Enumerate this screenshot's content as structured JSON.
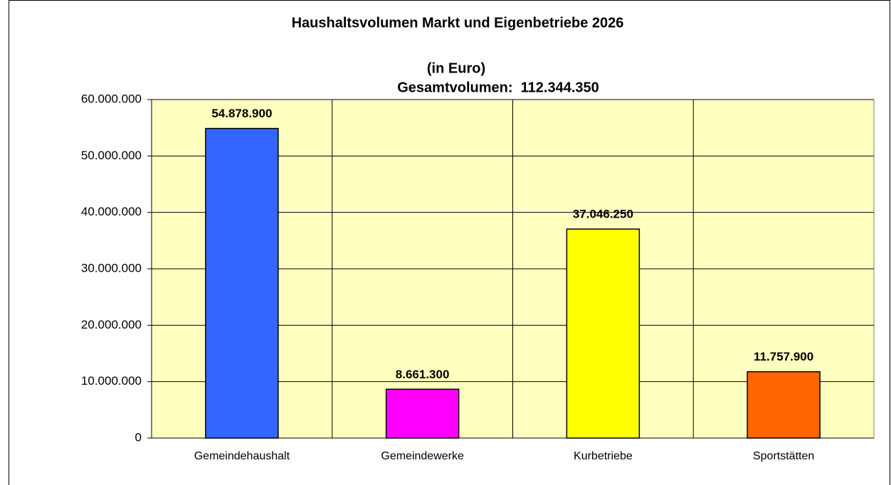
{
  "chart_data": {
    "type": "bar",
    "title": "Haushaltsvolumen Markt und Eigenbetriebe 2026",
    "subtitle": "(in Euro)",
    "annotation": "Gesamtvolumen:  112.344.350",
    "categories": [
      "Gemeindehaushalt",
      "Gemeindewerke",
      "Kurbetriebe",
      "Sportstätten"
    ],
    "values": [
      54878900,
      8661300,
      37046250,
      11757900
    ],
    "value_labels": [
      "54.878.900",
      "8.661.300",
      "37.046.250",
      "11.757.900"
    ],
    "colors": [
      "#3366ff",
      "#ff00ff",
      "#ffff00",
      "#ff6600"
    ],
    "ylim": [
      0,
      60000000
    ],
    "yticks": [
      0,
      {
        "value": 10000000,
        "label": "10.000.000"
      },
      {
        "value": 20000000,
        "label": "20.000.000"
      },
      {
        "value": 30000000,
        "label": "30.000.000"
      },
      {
        "value": 40000000,
        "label": "40.000.000"
      },
      {
        "value": 50000000,
        "label": "50.000.000"
      },
      {
        "value": 60000000,
        "label": "60.000.000"
      }
    ],
    "grid": true
  }
}
